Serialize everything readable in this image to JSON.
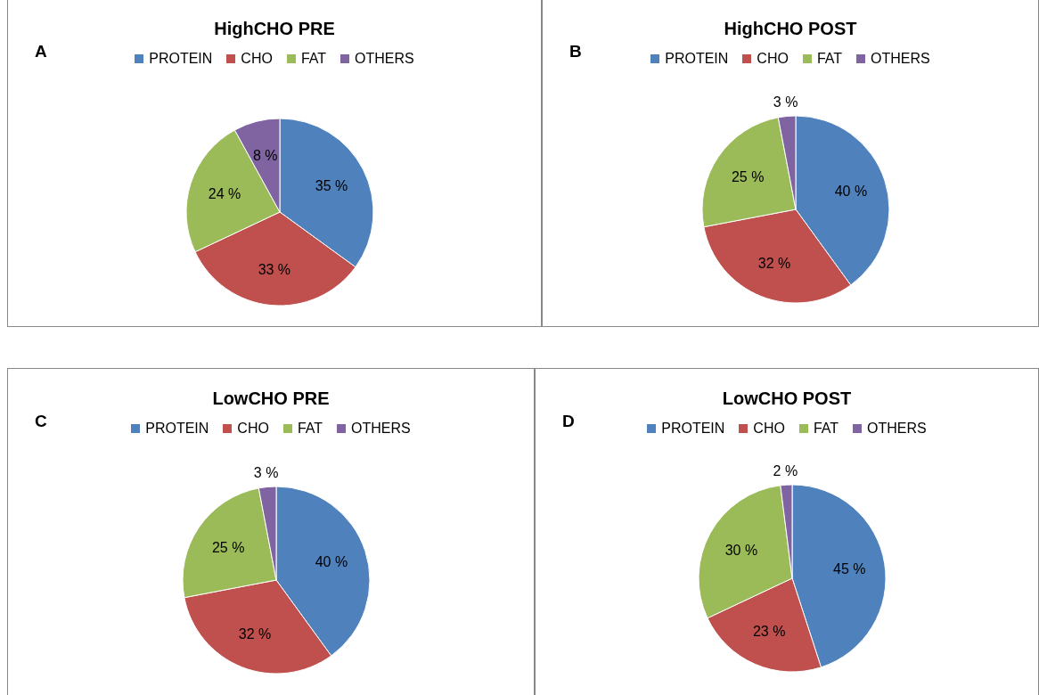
{
  "chart_data": [
    {
      "type": "pie",
      "title": "HighCHO PRE",
      "annotations": [
        "A"
      ],
      "categories": [
        "PROTEIN",
        "CHO",
        "FAT",
        "OTHERS"
      ],
      "values": [
        35,
        33,
        24,
        8
      ],
      "value_labels": [
        "35 %",
        "33 %",
        "24 %",
        "8 %"
      ],
      "colors": [
        "#4f81bd",
        "#c0504d",
        "#9bbb59",
        "#8064a2"
      ],
      "legend": "top"
    },
    {
      "type": "pie",
      "title": "HighCHO POST",
      "annotations": [
        "B"
      ],
      "categories": [
        "PROTEIN",
        "CHO",
        "FAT",
        "OTHERS"
      ],
      "values": [
        40,
        32,
        25,
        3
      ],
      "value_labels": [
        "40 %",
        "32 %",
        "25 %",
        "3 %"
      ],
      "colors": [
        "#4f81bd",
        "#c0504d",
        "#9bbb59",
        "#8064a2"
      ],
      "legend": "top"
    },
    {
      "type": "pie",
      "title": "LowCHO PRE",
      "annotations": [
        "C"
      ],
      "categories": [
        "PROTEIN",
        "CHO",
        "FAT",
        "OTHERS"
      ],
      "values": [
        40,
        32,
        25,
        3
      ],
      "value_labels": [
        "40 %",
        "32 %",
        "25 %",
        "3 %"
      ],
      "colors": [
        "#4f81bd",
        "#c0504d",
        "#9bbb59",
        "#8064a2"
      ],
      "legend": "top"
    },
    {
      "type": "pie",
      "title": "LowCHO POST",
      "annotations": [
        "D"
      ],
      "categories": [
        "PROTEIN",
        "CHO",
        "FAT",
        "OTHERS"
      ],
      "values": [
        45,
        23,
        30,
        2
      ],
      "value_labels": [
        "45 %",
        "23 %",
        "30 %",
        "2 %"
      ],
      "colors": [
        "#4f81bd",
        "#c0504d",
        "#9bbb59",
        "#8064a2"
      ],
      "legend": "top"
    }
  ]
}
